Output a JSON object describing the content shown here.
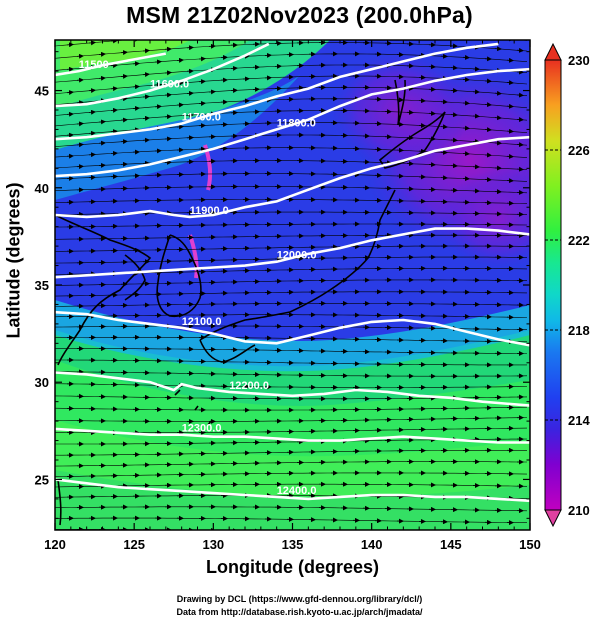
{
  "title": "MSM 21Z02Nov2023 (200.0hPa)",
  "xlabel": "Longitude (degrees)",
  "ylabel": "Latitude  (degrees)",
  "credits": {
    "line1": "Drawing by DCL (https://www.gfd-dennou.org/library/dcl/)",
    "line2": "Data from http://database.rish.kyoto-u.ac.jp/arch/jmadata/"
  },
  "chart_data": {
    "type": "map",
    "xlim": [
      120,
      150
    ],
    "ylim": [
      22.4,
      47.6
    ],
    "x_ticks": [
      120,
      125,
      130,
      135,
      140,
      145,
      150
    ],
    "x_tick_labels": [
      "120",
      "125",
      "130",
      "135",
      "140",
      "145",
      "150"
    ],
    "y_ticks": [
      25,
      30,
      35,
      40,
      45
    ],
    "y_tick_labels": [
      "25",
      "30",
      "35",
      "40",
      "45"
    ],
    "colorbar": {
      "range": [
        210,
        230
      ],
      "ticks": [
        210,
        214,
        218,
        222,
        226,
        230
      ],
      "tick_labels": [
        "210",
        "214",
        "218",
        "222",
        "226",
        "230"
      ],
      "colors": [
        "#c000c0",
        "#9000d0",
        "#5a18e0",
        "#2a34e8",
        "#2050f0",
        "#1a78f0",
        "#18b0e8",
        "#10d8c0",
        "#20e880",
        "#40f040",
        "#80f020",
        "#c0e020",
        "#f0d020",
        "#f8a020",
        "#f06020",
        "#e83020"
      ]
    },
    "contours": [
      {
        "label": "11500",
        "points": [
          [
            120,
            45.8
          ],
          [
            121.5,
            46.0
          ],
          [
            123,
            46.3
          ],
          [
            125,
            46.6
          ],
          [
            127,
            46.9
          ]
        ]
      },
      {
        "label": "11600.0",
        "points": [
          [
            120,
            44.2
          ],
          [
            122,
            44.3
          ],
          [
            124,
            44.6
          ],
          [
            126,
            45.0
          ],
          [
            128,
            45.5
          ],
          [
            130,
            46.1
          ],
          [
            132,
            46.8
          ],
          [
            133.5,
            47.4
          ]
        ]
      },
      {
        "label": "11700.0",
        "points": [
          [
            120,
            42.5
          ],
          [
            122,
            42.6
          ],
          [
            124,
            42.8
          ],
          [
            126,
            43.0
          ],
          [
            128,
            43.3
          ],
          [
            130,
            43.8
          ],
          [
            132,
            44.2
          ],
          [
            134,
            44.7
          ],
          [
            136,
            45.1
          ],
          [
            138,
            45.7
          ],
          [
            140,
            46.1
          ],
          [
            142,
            46.5
          ],
          [
            144,
            46.9
          ],
          [
            146,
            47.2
          ],
          [
            148,
            47.4
          ]
        ]
      },
      {
        "label": "11800.0",
        "points": [
          [
            120,
            40.6
          ],
          [
            122,
            40.7
          ],
          [
            124,
            40.9
          ],
          [
            126,
            41.2
          ],
          [
            128,
            41.6
          ],
          [
            130,
            42.0
          ],
          [
            132,
            42.5
          ],
          [
            134,
            43.0
          ],
          [
            136,
            43.5
          ],
          [
            138,
            44.2
          ],
          [
            140,
            44.8
          ],
          [
            142,
            45.1
          ],
          [
            144,
            45.5
          ],
          [
            146,
            45.8
          ],
          [
            148,
            46.0
          ],
          [
            150,
            46.1
          ]
        ]
      },
      {
        "label": "11900.0",
        "points": [
          [
            120,
            38.6
          ],
          [
            122,
            38.5
          ],
          [
            124,
            38.6
          ],
          [
            126,
            38.8
          ],
          [
            127.5,
            38.6
          ],
          [
            128.5,
            38.5
          ],
          [
            130,
            38.6
          ],
          [
            132,
            39.0
          ],
          [
            134,
            39.3
          ],
          [
            136,
            39.9
          ],
          [
            138,
            40.5
          ],
          [
            140,
            41.0
          ],
          [
            142,
            41.4
          ],
          [
            144,
            41.9
          ],
          [
            146,
            42.2
          ],
          [
            148,
            42.5
          ],
          [
            150,
            42.6
          ]
        ]
      },
      {
        "label": "12000.0",
        "points": [
          [
            120,
            35.4
          ],
          [
            122,
            35.5
          ],
          [
            124,
            35.6
          ],
          [
            126,
            35.7
          ],
          [
            128,
            35.8
          ],
          [
            130,
            35.9
          ],
          [
            132,
            36.0
          ],
          [
            134,
            36.2
          ],
          [
            136,
            36.6
          ],
          [
            138,
            36.9
          ],
          [
            140,
            37.3
          ],
          [
            142,
            37.6
          ],
          [
            144,
            37.9
          ],
          [
            146,
            37.9
          ],
          [
            148,
            37.8
          ],
          [
            150,
            37.6
          ]
        ]
      },
      {
        "label": "12100.0",
        "points": [
          [
            120,
            33.6
          ],
          [
            122,
            33.5
          ],
          [
            124,
            33.2
          ],
          [
            126,
            33.0
          ],
          [
            128,
            32.8
          ],
          [
            130,
            32.5
          ],
          [
            132,
            32.1
          ],
          [
            134,
            32.0
          ],
          [
            136,
            32.4
          ],
          [
            138,
            32.8
          ],
          [
            140,
            33.1
          ],
          [
            142,
            33.2
          ],
          [
            144,
            33.0
          ],
          [
            146,
            32.6
          ],
          [
            148,
            32.2
          ],
          [
            150,
            31.9
          ]
        ]
      },
      {
        "label": "12200.0",
        "points": [
          [
            120,
            30.5
          ],
          [
            122,
            30.4
          ],
          [
            124,
            30.2
          ],
          [
            126,
            30.0
          ],
          [
            127.5,
            29.6
          ],
          [
            128,
            29.9
          ],
          [
            129,
            29.7
          ],
          [
            131,
            29.5
          ],
          [
            133,
            29.4
          ],
          [
            135,
            29.3
          ],
          [
            137,
            29.4
          ],
          [
            139,
            29.6
          ],
          [
            141,
            29.5
          ],
          [
            143,
            29.3
          ],
          [
            145,
            29.2
          ],
          [
            147,
            29.0
          ],
          [
            150,
            28.8
          ]
        ]
      },
      {
        "label": "12300.0",
        "points": [
          [
            120,
            27.6
          ],
          [
            122,
            27.5
          ],
          [
            124,
            27.4
          ],
          [
            126,
            27.3
          ],
          [
            128,
            27.3
          ],
          [
            130,
            27.2
          ],
          [
            132,
            27.2
          ],
          [
            134,
            27.1
          ],
          [
            136,
            27.0
          ],
          [
            138,
            27.0
          ],
          [
            140,
            27.1
          ],
          [
            142,
            27.2
          ],
          [
            144,
            27.1
          ],
          [
            146,
            27.0
          ],
          [
            148,
            26.9
          ],
          [
            150,
            26.9
          ]
        ]
      },
      {
        "label": "12400.0",
        "points": [
          [
            120,
            25.0
          ],
          [
            122,
            24.8
          ],
          [
            124,
            24.6
          ],
          [
            126,
            24.5
          ],
          [
            128,
            24.4
          ],
          [
            130,
            24.3
          ],
          [
            132,
            24.2
          ],
          [
            134,
            24.1
          ],
          [
            136,
            24.0
          ],
          [
            138,
            24.1
          ],
          [
            140,
            24.2
          ],
          [
            142,
            24.2
          ],
          [
            144,
            24.1
          ],
          [
            146,
            24.1
          ],
          [
            148,
            24.0
          ],
          [
            150,
            23.9
          ]
        ]
      }
    ]
  }
}
